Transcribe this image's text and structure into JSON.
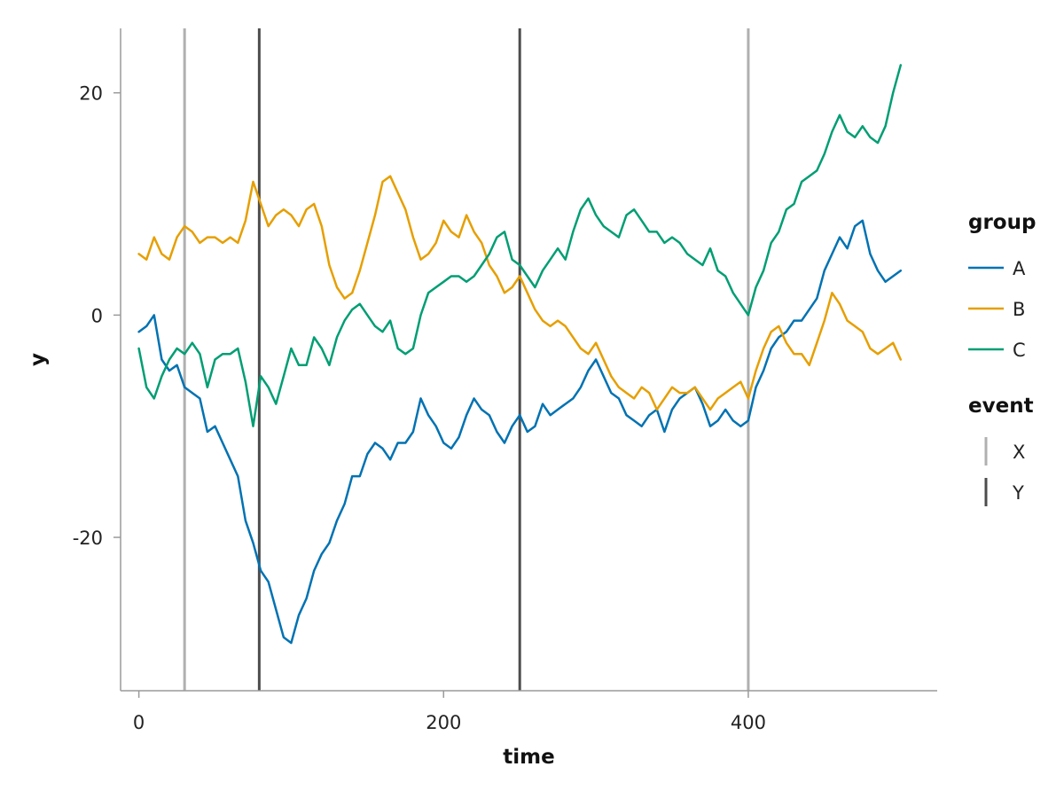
{
  "chart_data": {
    "type": "line",
    "title": "",
    "xlabel": "time",
    "ylabel": "y",
    "xlim": [
      -12,
      524
    ],
    "ylim": [
      -33.8,
      25.8
    ],
    "x_ticks": [
      0,
      200,
      400
    ],
    "y_ticks": [
      -20,
      0,
      20
    ],
    "x_tick_labels": [
      "0",
      "200",
      "400"
    ],
    "y_tick_labels": [
      "-20",
      "0",
      "20"
    ],
    "grid": false,
    "legend_placement": "right",
    "series": [
      {
        "name": "A",
        "color": "#0072B2",
        "x": [
          0,
          5,
          10,
          15,
          20,
          25,
          30,
          35,
          40,
          45,
          50,
          55,
          60,
          65,
          70,
          75,
          80,
          85,
          90,
          95,
          100,
          105,
          110,
          115,
          120,
          125,
          130,
          135,
          140,
          145,
          150,
          155,
          160,
          165,
          170,
          175,
          180,
          185,
          190,
          195,
          200,
          205,
          210,
          215,
          220,
          225,
          230,
          235,
          240,
          245,
          250,
          255,
          260,
          265,
          270,
          275,
          280,
          285,
          290,
          295,
          300,
          305,
          310,
          315,
          320,
          325,
          330,
          335,
          340,
          345,
          350,
          355,
          360,
          365,
          370,
          375,
          380,
          385,
          390,
          395,
          400,
          405,
          410,
          415,
          420,
          425,
          430,
          435,
          440,
          445,
          450,
          455,
          460,
          465,
          470,
          475,
          480,
          485,
          490,
          495,
          500
        ],
        "y": [
          -1.5,
          -1.0,
          0.0,
          -4.0,
          -5.0,
          -4.5,
          -6.5,
          -7.0,
          -7.5,
          -10.5,
          -10.0,
          -11.5,
          -13.0,
          -14.5,
          -18.5,
          -20.5,
          -23.0,
          -24.0,
          -26.5,
          -29.0,
          -29.5,
          -27.0,
          -25.5,
          -23.0,
          -21.5,
          -20.5,
          -18.5,
          -17.0,
          -14.5,
          -14.5,
          -12.5,
          -11.5,
          -12.0,
          -13.0,
          -11.5,
          -11.5,
          -10.5,
          -7.5,
          -9.0,
          -10.0,
          -11.5,
          -12.0,
          -11.0,
          -9.0,
          -7.5,
          -8.5,
          -9.0,
          -10.5,
          -11.5,
          -10.0,
          -9.0,
          -10.5,
          -10.0,
          -8.0,
          -9.0,
          -8.5,
          -8.0,
          -7.5,
          -6.5,
          -5.0,
          -4.0,
          -5.5,
          -7.0,
          -7.5,
          -9.0,
          -9.5,
          -10.0,
          -9.0,
          -8.5,
          -10.5,
          -8.5,
          -7.5,
          -7.0,
          -6.5,
          -8.0,
          -10.0,
          -9.5,
          -8.5,
          -9.5,
          -10.0,
          -9.5,
          -6.5,
          -5.0,
          -3.0,
          -2.0,
          -1.5,
          -0.5,
          -0.5,
          0.5,
          1.5,
          4.0,
          5.5,
          7.0,
          6.0,
          8.0,
          8.5,
          5.5,
          4.0,
          3.0,
          3.5,
          4.0
        ]
      },
      {
        "name": "B",
        "color": "#E69F00",
        "x": [
          0,
          5,
          10,
          15,
          20,
          25,
          30,
          35,
          40,
          45,
          50,
          55,
          60,
          65,
          70,
          75,
          80,
          85,
          90,
          95,
          100,
          105,
          110,
          115,
          120,
          125,
          130,
          135,
          140,
          145,
          150,
          155,
          160,
          165,
          170,
          175,
          180,
          185,
          190,
          195,
          200,
          205,
          210,
          215,
          220,
          225,
          230,
          235,
          240,
          245,
          250,
          255,
          260,
          265,
          270,
          275,
          280,
          285,
          290,
          295,
          300,
          305,
          310,
          315,
          320,
          325,
          330,
          335,
          340,
          345,
          350,
          355,
          360,
          365,
          370,
          375,
          380,
          385,
          390,
          395,
          400,
          405,
          410,
          415,
          420,
          425,
          430,
          435,
          440,
          445,
          450,
          455,
          460,
          465,
          470,
          475,
          480,
          485,
          490,
          495,
          500
        ],
        "y": [
          5.5,
          5.0,
          7.0,
          5.5,
          5.0,
          7.0,
          8.0,
          7.5,
          6.5,
          7.0,
          7.0,
          6.5,
          7.0,
          6.5,
          8.5,
          12.0,
          10.0,
          8.0,
          9.0,
          9.5,
          9.0,
          8.0,
          9.5,
          10.0,
          8.0,
          4.5,
          2.5,
          1.5,
          2.0,
          4.0,
          6.5,
          9.0,
          12.0,
          12.5,
          11.0,
          9.5,
          7.0,
          5.0,
          5.5,
          6.5,
          8.5,
          7.5,
          7.0,
          9.0,
          7.5,
          6.5,
          4.5,
          3.5,
          2.0,
          2.5,
          3.5,
          2.0,
          0.5,
          -0.5,
          -1.0,
          -0.5,
          -1.0,
          -2.0,
          -3.0,
          -3.5,
          -2.5,
          -4.0,
          -5.5,
          -6.5,
          -7.0,
          -7.5,
          -6.5,
          -7.0,
          -8.5,
          -7.5,
          -6.5,
          -7.0,
          -7.0,
          -6.5,
          -7.5,
          -8.5,
          -7.5,
          -7.0,
          -6.5,
          -6.0,
          -7.5,
          -5.0,
          -3.0,
          -1.5,
          -1.0,
          -2.5,
          -3.5,
          -3.5,
          -4.5,
          -2.5,
          -0.5,
          2.0,
          1.0,
          -0.5,
          -1.0,
          -1.5,
          -3.0,
          -3.5,
          -3.0,
          -2.5,
          -4.0
        ]
      },
      {
        "name": "C",
        "color": "#009E73",
        "x": [
          0,
          5,
          10,
          15,
          20,
          25,
          30,
          35,
          40,
          45,
          50,
          55,
          60,
          65,
          70,
          75,
          80,
          85,
          90,
          95,
          100,
          105,
          110,
          115,
          120,
          125,
          130,
          135,
          140,
          145,
          150,
          155,
          160,
          165,
          170,
          175,
          180,
          185,
          190,
          195,
          200,
          205,
          210,
          215,
          220,
          225,
          230,
          235,
          240,
          245,
          250,
          255,
          260,
          265,
          270,
          275,
          280,
          285,
          290,
          295,
          300,
          305,
          310,
          315,
          320,
          325,
          330,
          335,
          340,
          345,
          350,
          355,
          360,
          365,
          370,
          375,
          380,
          385,
          390,
          395,
          400,
          405,
          410,
          415,
          420,
          425,
          430,
          435,
          440,
          445,
          450,
          455,
          460,
          465,
          470,
          475,
          480,
          485,
          490,
          495,
          500
        ],
        "y": [
          -3.0,
          -6.5,
          -7.5,
          -5.5,
          -4.0,
          -3.0,
          -3.5,
          -2.5,
          -3.5,
          -6.5,
          -4.0,
          -3.5,
          -3.5,
          -3.0,
          -6.0,
          -10.0,
          -5.5,
          -6.5,
          -8.0,
          -5.5,
          -3.0,
          -4.5,
          -4.5,
          -2.0,
          -3.0,
          -4.5,
          -2.0,
          -0.5,
          0.5,
          1.0,
          0.0,
          -1.0,
          -1.5,
          -0.5,
          -3.0,
          -3.5,
          -3.0,
          0.0,
          2.0,
          2.5,
          3.0,
          3.5,
          3.5,
          3.0,
          3.5,
          4.5,
          5.5,
          7.0,
          7.5,
          5.0,
          4.5,
          3.5,
          2.5,
          4.0,
          5.0,
          6.0,
          5.0,
          7.5,
          9.5,
          10.5,
          9.0,
          8.0,
          7.5,
          7.0,
          9.0,
          9.5,
          8.5,
          7.5,
          7.5,
          6.5,
          7.0,
          6.5,
          5.5,
          5.0,
          4.5,
          6.0,
          4.0,
          3.5,
          2.0,
          1.0,
          0.0,
          2.5,
          4.0,
          6.5,
          7.5,
          9.5,
          10.0,
          12.0,
          12.5,
          13.0,
          14.5,
          16.5,
          18.0,
          16.5,
          16.0,
          17.0,
          16.0,
          15.5,
          17.0,
          20.0,
          22.5
        ]
      }
    ],
    "vlines": [
      {
        "x": 30,
        "event": "X",
        "color": "#B0B0B0"
      },
      {
        "x": 79,
        "event": "Y",
        "color": "#4D4D4D"
      },
      {
        "x": 250,
        "event": "Y",
        "color": "#4D4D4D"
      },
      {
        "x": 400,
        "event": "X",
        "color": "#B0B0B0"
      }
    ],
    "legends": [
      {
        "title": "group",
        "kind": "line",
        "entries": [
          {
            "label": "A",
            "color": "#0072B2"
          },
          {
            "label": "B",
            "color": "#E69F00"
          },
          {
            "label": "C",
            "color": "#009E73"
          }
        ]
      },
      {
        "title": "event",
        "kind": "vline",
        "entries": [
          {
            "label": "X",
            "color": "#B0B0B0"
          },
          {
            "label": "Y",
            "color": "#4D4D4D"
          }
        ]
      }
    ]
  }
}
